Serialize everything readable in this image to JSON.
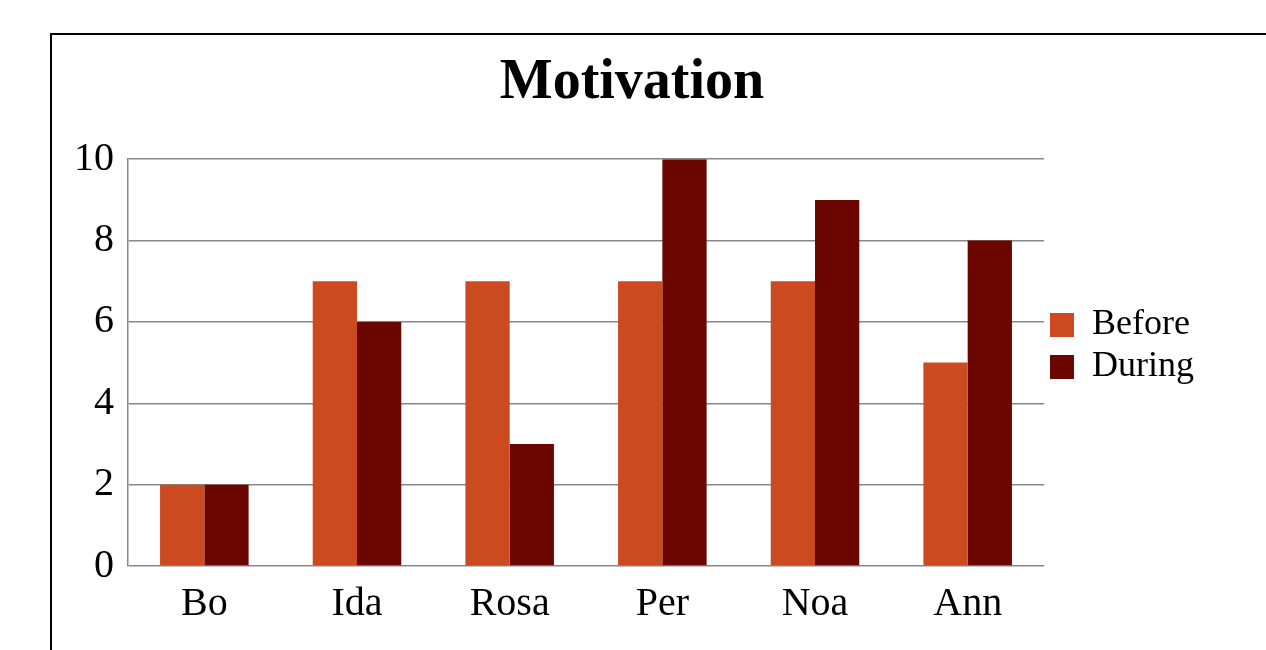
{
  "chart_data": {
    "type": "bar",
    "title": "Motivation",
    "categories": [
      "Bo",
      "Ida",
      "Rosa",
      "Per",
      "Noa",
      "Ann"
    ],
    "series": [
      {
        "name": "Before",
        "color": "#cc4a1f",
        "values": [
          2,
          7,
          7,
          7,
          7,
          5
        ]
      },
      {
        "name": "During",
        "color": "#6b0600",
        "values": [
          2,
          6,
          3,
          10,
          9,
          8
        ]
      }
    ],
    "ylim": [
      0,
      10
    ],
    "yticks": [
      0,
      2,
      4,
      6,
      8,
      10
    ],
    "grid": "y",
    "legend": "right"
  }
}
